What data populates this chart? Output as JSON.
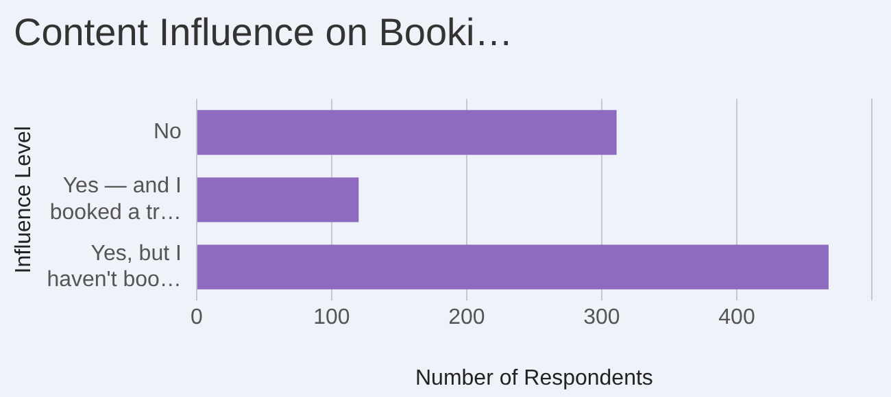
{
  "chart_data": {
    "type": "bar",
    "orientation": "horizontal",
    "title": "Content Influence on Booki…",
    "xlabel": "Number of Respondents",
    "ylabel": "Influence Level",
    "categories": [
      "No",
      "Yes — and I booked a tr…",
      "Yes, but I haven't boo…"
    ],
    "values": [
      311,
      120,
      468
    ],
    "color": "#8e6bbf",
    "xlim": [
      0,
      500
    ],
    "xticks": [
      0,
      100,
      200,
      300,
      400,
      {
        "value": 500,
        "label": null
      }
    ],
    "grid": "x"
  }
}
